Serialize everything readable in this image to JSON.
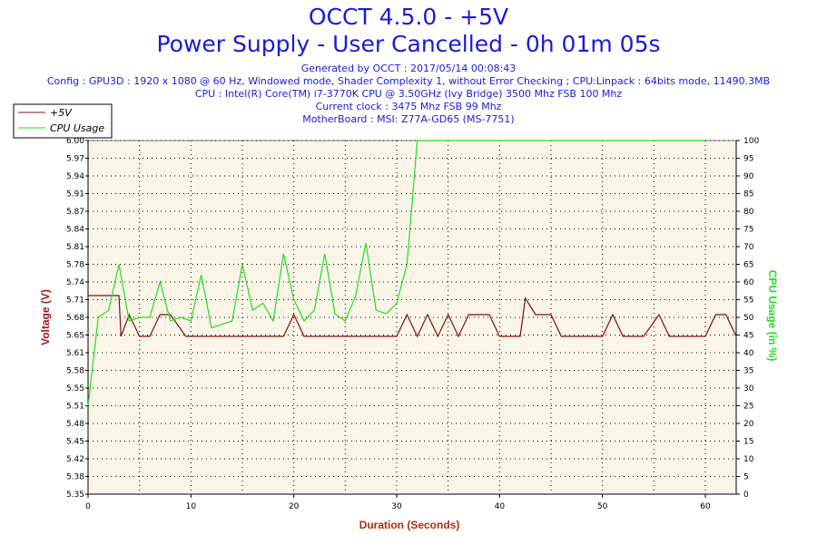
{
  "header": {
    "title": "OCCT 4.5.0 - +5V",
    "subtitle": "Power Supply - User Cancelled - 0h 01m 05s",
    "info": [
      "Generated by OCCT : 2017/05/14 00:08:43",
      "Config : GPU3D : 1920 x 1080 @ 60 Hz, Windowed mode, Shader Complexity 1, without Error Checking ; CPU:Linpack : 64bits mode, 11490.3MB",
      "CPU : Intel(R) Core(TM) i7-3770K CPU @ 3.50GHz (Ivy Bridge) 3500 Mhz FSB 100 Mhz",
      "Current clock : 3475 Mhz FSB 99 Mhz",
      "MotherBoard : MSI: Z77A-GD65 (MS-7751)"
    ]
  },
  "colors": {
    "voltage": "#7b1010",
    "cpu": "#22dd22",
    "plot_bg": "#fbf5e8",
    "title": "#1b1bd8",
    "axis_title_left": "#a01818",
    "axis_title_right": "#22dd22",
    "axis_title_bottom": "#b32a10"
  },
  "chart_data": {
    "type": "line",
    "xlabel": "Duration (Seconds)",
    "ylabel": "Voltage (V)",
    "y2label": "CPU Usage (in %)",
    "xlim": [
      0,
      63
    ],
    "ylim": [
      5.35,
      6.0
    ],
    "y2lim": [
      0,
      100
    ],
    "x_ticks": [
      0,
      10,
      20,
      30,
      40,
      50,
      60
    ],
    "y_ticks": [
      "5.35",
      "5.38",
      "5.42",
      "5.45",
      "5.48",
      "5.51",
      "5.55",
      "5.58",
      "5.61",
      "5.65",
      "5.68",
      "5.71",
      "5.74",
      "5.78",
      "5.81",
      "5.84",
      "5.87",
      "5.91",
      "5.94",
      "5.97",
      "6.00"
    ],
    "y2_ticks": [
      0,
      5,
      10,
      15,
      20,
      25,
      30,
      35,
      40,
      45,
      50,
      55,
      60,
      65,
      70,
      75,
      80,
      85,
      90,
      95,
      100
    ],
    "grid": true,
    "legend": "top-left",
    "series": [
      {
        "name": "+5V",
        "axis": "left",
        "points": [
          [
            0,
            5.715
          ],
          [
            3,
            5.715
          ],
          [
            3.2,
            5.64
          ],
          [
            4,
            5.68
          ],
          [
            5,
            5.64
          ],
          [
            6,
            5.64
          ],
          [
            7,
            5.68
          ],
          [
            8,
            5.68
          ],
          [
            9.5,
            5.64
          ],
          [
            18,
            5.64
          ],
          [
            19,
            5.64
          ],
          [
            20,
            5.68
          ],
          [
            21,
            5.64
          ],
          [
            30,
            5.64
          ],
          [
            31,
            5.68
          ],
          [
            32,
            5.64
          ],
          [
            33,
            5.68
          ],
          [
            34,
            5.64
          ],
          [
            35,
            5.68
          ],
          [
            36,
            5.64
          ],
          [
            37,
            5.68
          ],
          [
            39,
            5.68
          ],
          [
            40,
            5.64
          ],
          [
            42,
            5.64
          ],
          [
            42.5,
            5.71
          ],
          [
            43.5,
            5.68
          ],
          [
            45,
            5.68
          ],
          [
            46,
            5.64
          ],
          [
            49,
            5.64
          ],
          [
            50,
            5.64
          ],
          [
            51,
            5.68
          ],
          [
            52,
            5.64
          ],
          [
            54,
            5.64
          ],
          [
            55.5,
            5.68
          ],
          [
            56.5,
            5.64
          ],
          [
            59,
            5.64
          ],
          [
            60,
            5.64
          ],
          [
            61,
            5.68
          ],
          [
            62,
            5.68
          ],
          [
            63,
            5.64
          ]
        ]
      },
      {
        "name": "CPU Usage",
        "axis": "right",
        "points": [
          [
            0,
            25
          ],
          [
            1,
            50
          ],
          [
            2,
            52
          ],
          [
            3,
            65
          ],
          [
            4,
            49
          ],
          [
            5,
            50
          ],
          [
            6,
            50
          ],
          [
            7,
            60
          ],
          [
            8,
            49
          ],
          [
            9,
            50
          ],
          [
            10,
            49
          ],
          [
            11,
            62
          ],
          [
            12,
            47
          ],
          [
            13,
            48
          ],
          [
            14,
            49
          ],
          [
            15,
            65
          ],
          [
            16,
            52
          ],
          [
            17,
            54
          ],
          [
            18,
            49
          ],
          [
            19,
            68
          ],
          [
            20,
            55
          ],
          [
            21,
            49
          ],
          [
            22,
            52
          ],
          [
            23,
            68
          ],
          [
            24,
            51
          ],
          [
            25,
            49
          ],
          [
            26,
            56
          ],
          [
            27,
            71
          ],
          [
            28,
            52
          ],
          [
            29,
            51
          ],
          [
            30,
            54
          ],
          [
            31,
            65
          ],
          [
            32,
            100
          ],
          [
            33,
            100
          ],
          [
            60,
            100
          ]
        ]
      }
    ]
  }
}
